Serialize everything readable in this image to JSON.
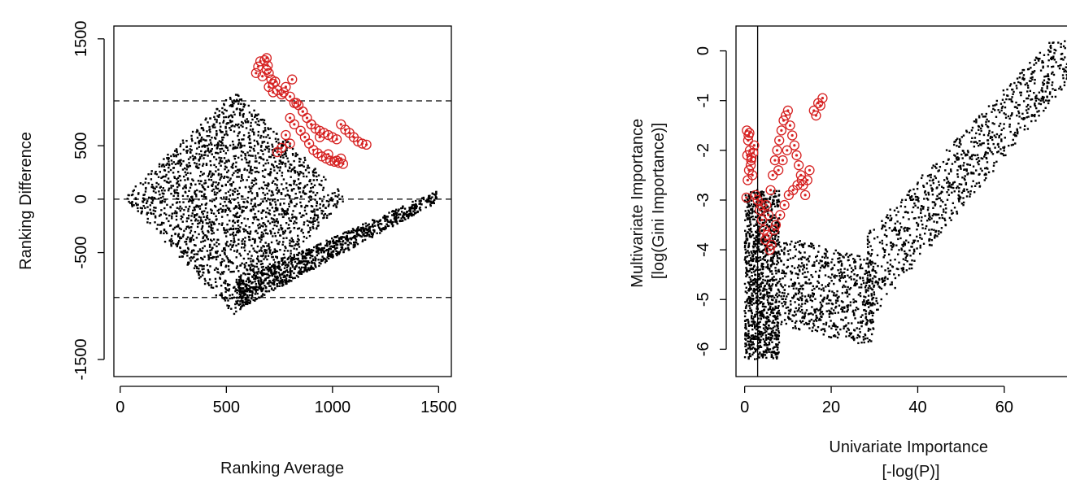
{
  "chart_data": [
    {
      "type": "scatter",
      "xlabel": "Ranking Average",
      "ylabel": "Ranking Difference",
      "xlim": [
        -30,
        1560
      ],
      "ylim": [
        -1660,
        1620
      ],
      "x_ticks": [
        0,
        500,
        1000,
        1500
      ],
      "y_ticks": [
        -1500,
        -500,
        0,
        500,
        1500
      ],
      "x_tick_labels": [
        "0",
        "500",
        "1000",
        "1500"
      ],
      "y_tick_labels": [
        "-1500",
        "-500",
        "0",
        "500",
        "1500"
      ],
      "reference_lines": [
        {
          "orientation": "horizontal",
          "value": 920,
          "style": "dashed"
        },
        {
          "orientation": "horizontal",
          "value": 0,
          "style": "dashed"
        },
        {
          "orientation": "horizontal",
          "value": -920,
          "style": "dashed"
        }
      ],
      "highlight_color": "#d62020",
      "point_color": "#000000",
      "highlighted": {
        "x": [
          680,
          695,
          700,
          712,
          690,
          720,
          740,
          760,
          780,
          800,
          820,
          840,
          860,
          880,
          900,
          920,
          940,
          960,
          980,
          1000,
          1020,
          1040,
          1060,
          1080,
          1100,
          1120,
          1140,
          1160,
          800,
          820,
          850,
          870,
          890,
          910,
          930,
          950,
          970,
          990,
          1010,
          1030,
          1050,
          780,
          800,
          760,
          740,
          720,
          700,
          670,
          650,
          640,
          660,
          690,
          730,
          770,
          810,
          830,
          860,
          900,
          940,
          980,
          1020,
          1040
        ],
        "y": [
          1300,
          1250,
          1180,
          1120,
          1210,
          1080,
          1020,
          980,
          1050,
          960,
          900,
          880,
          820,
          760,
          700,
          660,
          640,
          620,
          600,
          580,
          560,
          700,
          650,
          620,
          580,
          540,
          520,
          510,
          760,
          700,
          640,
          580,
          520,
          460,
          430,
          400,
          380,
          360,
          350,
          340,
          330,
          600,
          520,
          480,
          440,
          1000,
          1050,
          1150,
          1240,
          1180,
          1290,
          1320,
          1100,
          1000,
          1120,
          900,
          820,
          700,
          580,
          420,
          360,
          380
        ]
      },
      "series": [
        {
          "x_range": [
            30,
            1500
          ],
          "y_range": [
            -1090,
            1010
          ],
          "count": 2200,
          "region": "diamond"
        },
        {
          "x_range": [
            550,
            1490
          ],
          "y_range": [
            -1000,
            80
          ],
          "count": 1200,
          "region": "lower-right band"
        }
      ]
    },
    {
      "type": "scatter",
      "xlabel": "Univariate Importance\n[-log(P)]",
      "ylabel": "Multivariate Importance\n[log(Gini Importance)]",
      "xlim": [
        -2,
        76
      ],
      "ylim": [
        -6.55,
        0.5
      ],
      "x_ticks": [
        0,
        20,
        40,
        60
      ],
      "y_ticks": [
        -6,
        -5,
        -4,
        -3,
        -2,
        -1,
        0
      ],
      "x_tick_labels": [
        "0",
        "20",
        "40",
        "60"
      ],
      "y_tick_labels": [
        "-6",
        "-5",
        "-4",
        "-3",
        "-2",
        "-1",
        "0"
      ],
      "reference_lines": [
        {
          "orientation": "vertical",
          "value": 3,
          "style": "solid"
        }
      ],
      "highlight_color": "#d62020",
      "point_color": "#000000",
      "highlighted": {
        "x": [
          0.5,
          0.8,
          1.2,
          1.5,
          1.0,
          0.6,
          0.9,
          1.4,
          1.8,
          2.2,
          0.7,
          1.1,
          1.6,
          2.0,
          0.4,
          2.5,
          3.0,
          3.5,
          4.0,
          4.5,
          5.0,
          5.5,
          6.0,
          6.5,
          7.0,
          7.5,
          8.0,
          8.5,
          9.0,
          9.5,
          10.0,
          10.5,
          11.0,
          11.5,
          12.0,
          12.5,
          13.0,
          13.5,
          14.0,
          14.5,
          15.0,
          16.0,
          17.0,
          18.0,
          17.5,
          16.5,
          5.2,
          6.2,
          7.2,
          8.2,
          9.2,
          10.2,
          11.2,
          12.2,
          13.2,
          4.8,
          5.8,
          6.8,
          7.8,
          8.8,
          9.8,
          3.8
        ],
        "y": [
          -1.6,
          -1.8,
          -2.0,
          -2.2,
          -2.4,
          -2.1,
          -1.7,
          -2.3,
          -2.5,
          -1.9,
          -2.6,
          -1.65,
          -2.15,
          -2.05,
          -2.95,
          -2.9,
          -3.0,
          -3.2,
          -3.4,
          -3.6,
          -3.1,
          -3.3,
          -2.8,
          -2.5,
          -2.2,
          -2.0,
          -1.8,
          -1.6,
          -1.4,
          -1.3,
          -1.2,
          -1.5,
          -1.7,
          -1.9,
          -2.1,
          -2.3,
          -2.5,
          -2.7,
          -2.9,
          -2.6,
          -2.4,
          -1.2,
          -1.05,
          -0.95,
          -1.1,
          -1.3,
          -3.7,
          -3.9,
          -3.5,
          -3.3,
          -3.1,
          -2.9,
          -2.8,
          -2.7,
          -2.6,
          -3.8,
          -4.0,
          -3.6,
          -2.4,
          -2.2,
          -2.0,
          -3.1
        ]
      },
      "series": [
        {
          "x_range": [
            0,
            8
          ],
          "y_range": [
            -6.2,
            -2.8
          ],
          "count": 1100,
          "region": "left cluster"
        },
        {
          "x_range": [
            8,
            30
          ],
          "y_range": [
            -5.9,
            -3.8
          ],
          "count": 700,
          "region": "middle cluster"
        },
        {
          "x_range": [
            28,
            75
          ],
          "y_range": [
            -5.5,
            0.2
          ],
          "count": 1000,
          "region": "rising band"
        }
      ]
    }
  ]
}
